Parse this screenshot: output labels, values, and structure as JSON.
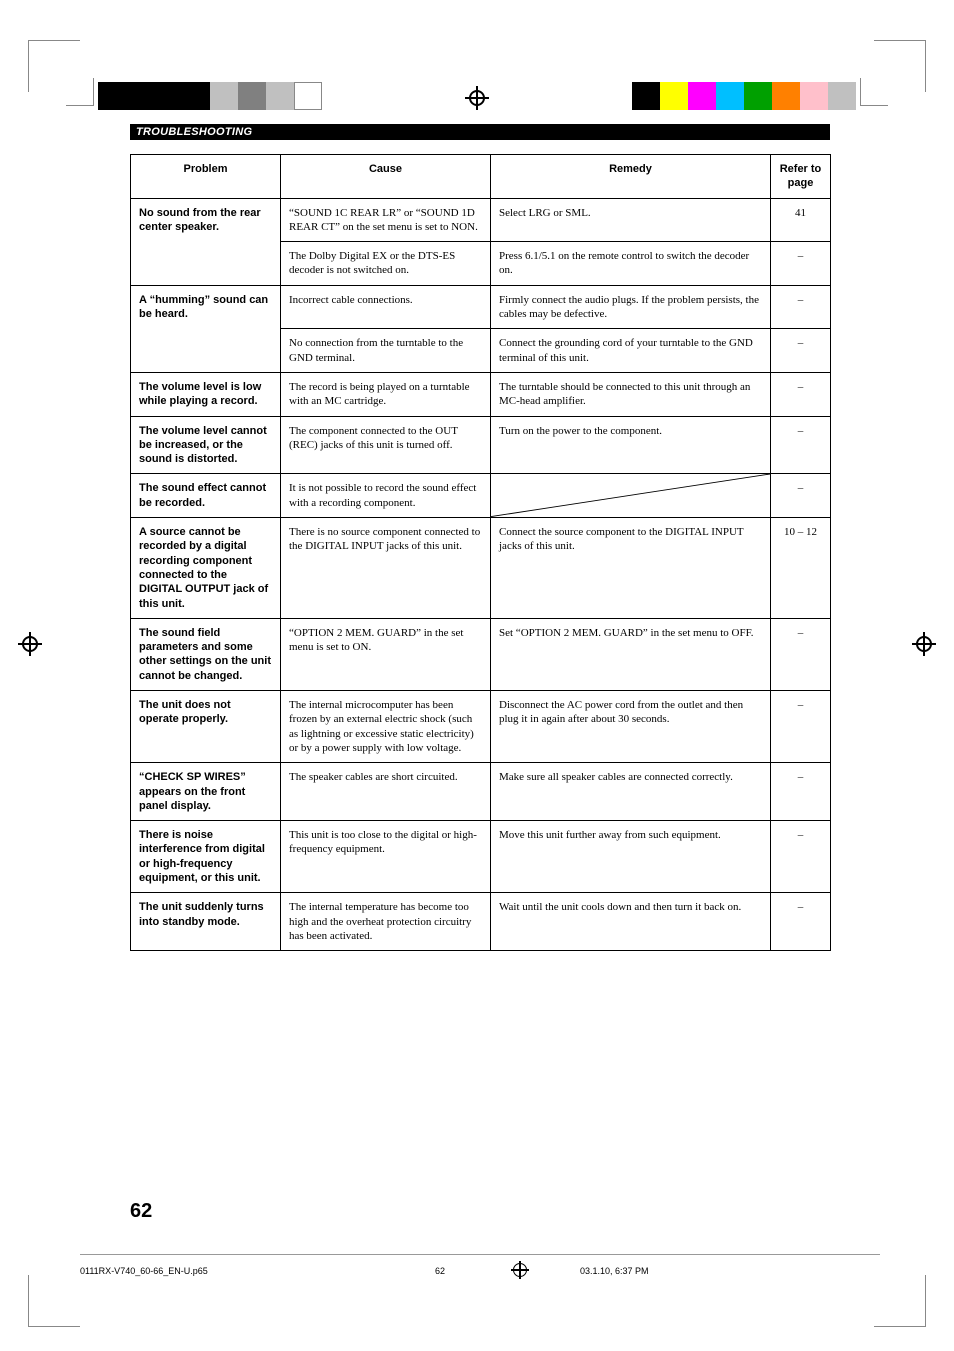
{
  "section_title": "TROUBLESHOOTING",
  "page_number": "62",
  "headers": {
    "problem": "Problem",
    "cause": "Cause",
    "remedy": "Remedy",
    "ref": "Refer to page"
  },
  "rows": [
    {
      "problem": "No sound from the rear center speaker.",
      "span": 2,
      "entries": [
        {
          "cause": "“SOUND 1C REAR LR” or “SOUND 1D REAR CT” on the set menu is set to NON.",
          "remedy": "Select LRG or SML.",
          "ref": "41"
        },
        {
          "cause": "The Dolby Digital EX or the DTS-ES decoder is not switched on.",
          "remedy": "Press 6.1/5.1 on the remote control to switch the decoder on.",
          "ref": "–"
        }
      ]
    },
    {
      "problem": "A “humming” sound can be heard.",
      "span": 2,
      "entries": [
        {
          "cause": "Incorrect cable connections.",
          "remedy": "Firmly connect the audio plugs. If the problem persists, the cables may be defective.",
          "ref": "–"
        },
        {
          "cause": "No connection from the turntable to the GND terminal.",
          "remedy": "Connect the grounding cord of your turntable to the GND terminal of this unit.",
          "ref": "–"
        }
      ]
    },
    {
      "problem": "The volume level is low while playing a record.",
      "span": 1,
      "entries": [
        {
          "cause": "The record is being played on a turntable with an MC cartridge.",
          "remedy": "The turntable should be connected to this unit through an MC-head amplifier.",
          "ref": "–"
        }
      ]
    },
    {
      "problem": "The volume level cannot be increased, or the sound is distorted.",
      "span": 1,
      "entries": [
        {
          "cause": "The component connected to the OUT (REC) jacks of this unit is turned off.",
          "remedy": "Turn on the power to the component.",
          "ref": "–"
        }
      ]
    },
    {
      "problem": "The sound effect cannot be recorded.",
      "span": 1,
      "entries": [
        {
          "cause": "It is not possible to record the sound effect with a recording component.",
          "remedy": "NA",
          "ref": "–"
        }
      ]
    },
    {
      "problem": "A source cannot be recorded by a digital recording component connected to the DIGITAL OUTPUT jack of this unit.",
      "span": 1,
      "entries": [
        {
          "cause": "There is no source component connected to the DIGITAL INPUT jacks of this unit.",
          "remedy": "Connect the source component to the DIGITAL INPUT jacks of this unit.",
          "ref": "10 – 12"
        }
      ]
    },
    {
      "problem": "The sound field parameters and some other settings on the unit cannot be changed.",
      "span": 1,
      "entries": [
        {
          "cause": "“OPTION 2 MEM. GUARD” in the set menu is set to ON.",
          "remedy": "Set “OPTION 2 MEM. GUARD” in the set menu to OFF.",
          "ref": "–"
        }
      ]
    },
    {
      "problem": "The unit does not operate properly.",
      "span": 1,
      "entries": [
        {
          "cause": "The internal microcomputer has been frozen by an external electric shock (such as lightning or excessive static electricity) or by a power supply with low voltage.",
          "remedy": "Disconnect the AC power cord from the outlet and then plug it in again after about 30 seconds.",
          "ref": "–"
        }
      ]
    },
    {
      "problem": "“CHECK SP WIRES” appears on the front panel display.",
      "span": 1,
      "entries": [
        {
          "cause": "The speaker cables are short circuited.",
          "remedy": "Make sure all speaker cables are connected correctly.",
          "ref": "–"
        }
      ]
    },
    {
      "problem": "There is noise interference from digital or high-frequency equipment, or this unit.",
      "span": 1,
      "entries": [
        {
          "cause": "This unit is too close to the digital or high-frequency equipment.",
          "remedy": "Move this unit further away from such equipment.",
          "ref": "–"
        }
      ]
    },
    {
      "problem": "The unit suddenly turns into standby mode.",
      "span": 1,
      "entries": [
        {
          "cause": "The internal temperature has become too high and the overheat protection circuitry has been activated.",
          "remedy": "Wait until the unit cools down and then turn it back on.",
          "ref": "–"
        }
      ]
    }
  ],
  "color_bar_left": [
    "#000000",
    "#000000",
    "#000000",
    "#000000",
    "#c0c0c0",
    "#808080",
    "#c0c0c0",
    "#ffffff"
  ],
  "color_bar_right": [
    "#000000",
    "#ffff00",
    "#ff00ff",
    "#00bfff",
    "#00a000",
    "#ff8000",
    "#ffc0cb",
    "#c0c0c0"
  ],
  "footer": {
    "filename": "0111RX-V740_60-66_EN-U.p65",
    "page": "62",
    "datetime": "03.1.10, 6:37 PM"
  }
}
